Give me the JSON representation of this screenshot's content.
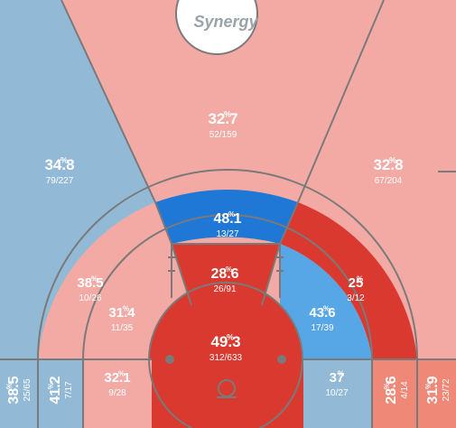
{
  "colors": {
    "background": "#f4aaa4",
    "line": "#7a7a7a",
    "cold": "#92bad6",
    "hot": "#d9392e",
    "hot_light": "#f4aaa4",
    "deep_blue": "#1f78d6",
    "mid_blue": "#57a6e6",
    "corner_salmon": "#f08878"
  },
  "logo": {
    "text": "Synergy"
  },
  "chart_data": {
    "type": "shot-chart",
    "zones": [
      {
        "id": "deep-center",
        "pct": "32.7",
        "made": 52,
        "attempts": 159,
        "frac": "52/159",
        "color": "hot_light"
      },
      {
        "id": "left-wing-three",
        "pct": "34.8",
        "made": 79,
        "attempts": 227,
        "frac": "79/227",
        "color": "cold"
      },
      {
        "id": "right-wing-three",
        "pct": "32.8",
        "made": 67,
        "attempts": 204,
        "frac": "67/204",
        "color": "hot_light"
      },
      {
        "id": "top-of-key-three",
        "pct": "48.1",
        "made": 13,
        "attempts": 27,
        "frac": "13/27",
        "color": "deep_blue"
      },
      {
        "id": "left-long-mid",
        "pct": "38.5",
        "made": 10,
        "attempts": 26,
        "frac": "10/26",
        "color": "hot_light"
      },
      {
        "id": "center-mid",
        "pct": "28.6",
        "made": 26,
        "attempts": 91,
        "frac": "26/91",
        "color": "hot"
      },
      {
        "id": "right-long-mid",
        "pct": "25",
        "made": 3,
        "attempts": 12,
        "frac": "3/12",
        "color": "hot"
      },
      {
        "id": "left-short-mid",
        "pct": "31.4",
        "made": 11,
        "attempts": 35,
        "frac": "11/35",
        "color": "hot_light"
      },
      {
        "id": "right-short-mid",
        "pct": "43.6",
        "made": 17,
        "attempts": 39,
        "frac": "17/39",
        "color": "mid_blue"
      },
      {
        "id": "restricted-area",
        "pct": "49.3",
        "made": 312,
        "attempts": 633,
        "frac": "312/633",
        "color": "hot"
      },
      {
        "id": "left-corner-three",
        "pct": "38.5",
        "made": 25,
        "attempts": 65,
        "frac": "25/65",
        "color": "cold"
      },
      {
        "id": "left-baseline-mid",
        "pct": "41.2",
        "made": 7,
        "attempts": 17,
        "frac": "7/17",
        "color": "cold"
      },
      {
        "id": "left-low-paint-side",
        "pct": "32.1",
        "made": 9,
        "attempts": 28,
        "frac": "9/28",
        "color": "hot_light"
      },
      {
        "id": "right-low-paint-side",
        "pct": "37",
        "made": 10,
        "attempts": 27,
        "frac": "10/27",
        "color": "cold"
      },
      {
        "id": "right-baseline-mid",
        "pct": "28.6",
        "made": 4,
        "attempts": 14,
        "frac": "4/14",
        "color": "corner_salmon"
      },
      {
        "id": "right-corner-three",
        "pct": "31.9",
        "made": 23,
        "attempts": 72,
        "frac": "23/72",
        "color": "corner_salmon"
      }
    ]
  }
}
